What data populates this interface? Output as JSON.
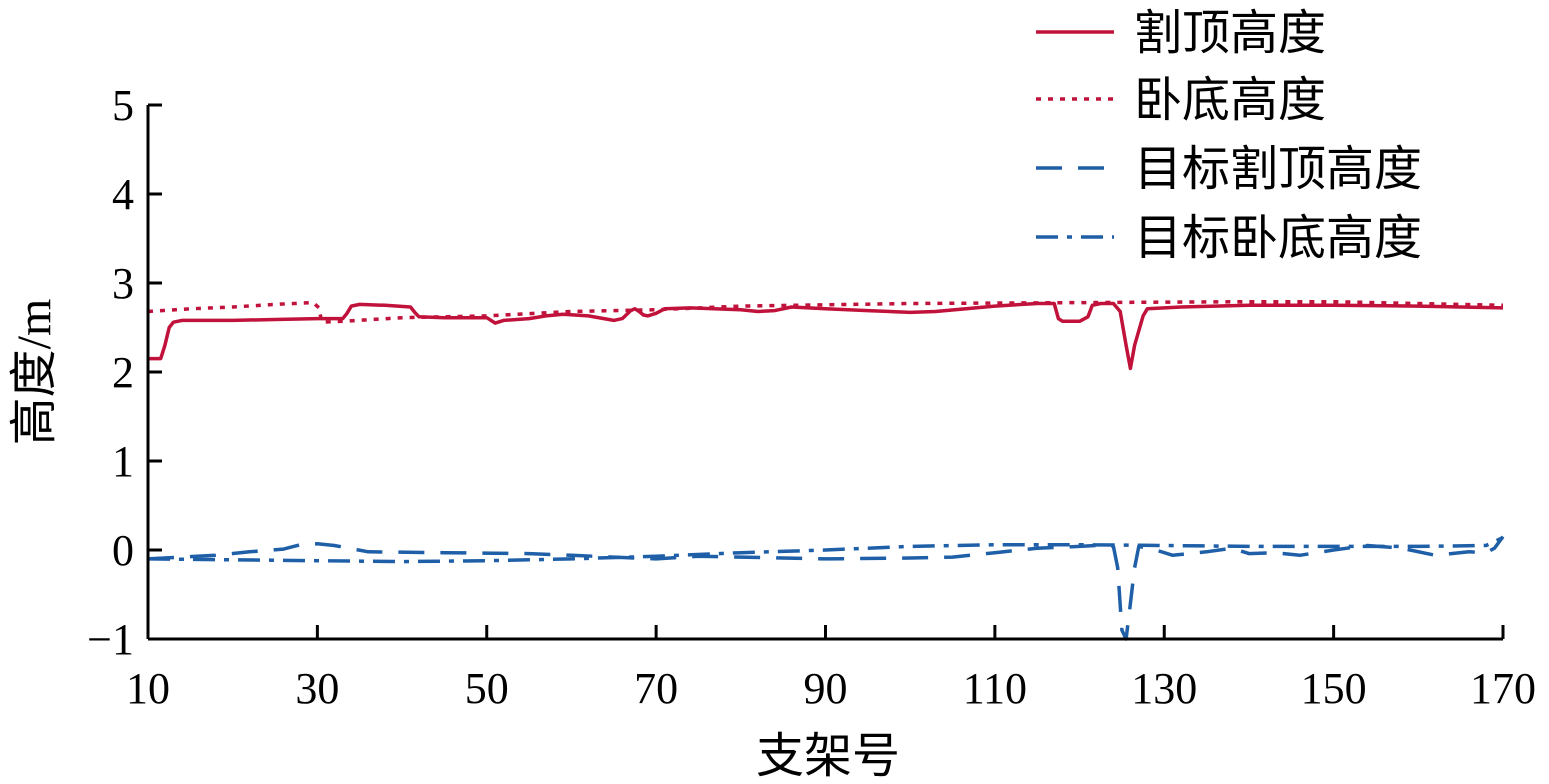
{
  "chart_data": {
    "type": "line",
    "xlabel": "支架号",
    "ylabel": "高度/m",
    "xlim": [
      10,
      170
    ],
    "ylim": [
      -1,
      5
    ],
    "xticks": [
      "10",
      "30",
      "50",
      "70",
      "90",
      "110",
      "130",
      "150",
      "170"
    ],
    "yticks": [
      "5",
      "4",
      "3",
      "2",
      "1",
      "0",
      "−1"
    ],
    "grid": false,
    "legend_position": "top-right",
    "series": [
      {
        "name": "割顶高度",
        "color": "#c0123a",
        "style": "solid",
        "points": [
          [
            10,
            2.15
          ],
          [
            11.5,
            2.15
          ],
          [
            12,
            2.3
          ],
          [
            12.5,
            2.5
          ],
          [
            13,
            2.56
          ],
          [
            14,
            2.58
          ],
          [
            20,
            2.58
          ],
          [
            25,
            2.59
          ],
          [
            30,
            2.6
          ],
          [
            33,
            2.6
          ],
          [
            33.5,
            2.66
          ],
          [
            34,
            2.74
          ],
          [
            35,
            2.76
          ],
          [
            38,
            2.75
          ],
          [
            41,
            2.73
          ],
          [
            41.5,
            2.67
          ],
          [
            42,
            2.62
          ],
          [
            45,
            2.61
          ],
          [
            50,
            2.61
          ],
          [
            51,
            2.55
          ],
          [
            52,
            2.58
          ],
          [
            55,
            2.6
          ],
          [
            57,
            2.63
          ],
          [
            59,
            2.65
          ],
          [
            62,
            2.63
          ],
          [
            65,
            2.58
          ],
          [
            66,
            2.6
          ],
          [
            67,
            2.69
          ],
          [
            67.5,
            2.71
          ],
          [
            68,
            2.68
          ],
          [
            68.5,
            2.64
          ],
          [
            69,
            2.63
          ],
          [
            70,
            2.66
          ],
          [
            71,
            2.71
          ],
          [
            74,
            2.72
          ],
          [
            80,
            2.7
          ],
          [
            82,
            2.68
          ],
          [
            84,
            2.69
          ],
          [
            86,
            2.73
          ],
          [
            90,
            2.71
          ],
          [
            95,
            2.69
          ],
          [
            100,
            2.67
          ],
          [
            103,
            2.68
          ],
          [
            110,
            2.74
          ],
          [
            115,
            2.77
          ],
          [
            117,
            2.77
          ],
          [
            117.5,
            2.6
          ],
          [
            118,
            2.57
          ],
          [
            120,
            2.57
          ],
          [
            121,
            2.62
          ],
          [
            121.5,
            2.75
          ],
          [
            122.5,
            2.77
          ],
          [
            124,
            2.77
          ],
          [
            124.8,
            2.68
          ],
          [
            125.5,
            2.3
          ],
          [
            126,
            2.04
          ],
          [
            126.5,
            2.3
          ],
          [
            127.5,
            2.63
          ],
          [
            128,
            2.71
          ],
          [
            132,
            2.73
          ],
          [
            140,
            2.75
          ],
          [
            150,
            2.75
          ],
          [
            160,
            2.74
          ],
          [
            170,
            2.72
          ]
        ]
      },
      {
        "name": "卧底高度",
        "color": "#c0123a",
        "style": "dotted",
        "points": [
          [
            10,
            2.68
          ],
          [
            15,
            2.71
          ],
          [
            20,
            2.73
          ],
          [
            25,
            2.76
          ],
          [
            29.5,
            2.78
          ],
          [
            30.2,
            2.72
          ],
          [
            30.5,
            2.56
          ],
          [
            33,
            2.57
          ],
          [
            40,
            2.61
          ],
          [
            50,
            2.63
          ],
          [
            60,
            2.68
          ],
          [
            70,
            2.7
          ],
          [
            80,
            2.74
          ],
          [
            100,
            2.77
          ],
          [
            120,
            2.78
          ],
          [
            140,
            2.79
          ],
          [
            150,
            2.79
          ],
          [
            160,
            2.77
          ],
          [
            170,
            2.75
          ]
        ]
      },
      {
        "name": "目标割顶高度",
        "color": "#1f5fa8",
        "style": "dashed",
        "points": [
          [
            10,
            -0.1
          ],
          [
            18,
            -0.06
          ],
          [
            22,
            -0.02
          ],
          [
            26,
            0.01
          ],
          [
            28,
            0.06
          ],
          [
            30,
            0.07
          ],
          [
            32,
            0.05
          ],
          [
            36,
            -0.02
          ],
          [
            45,
            -0.03
          ],
          [
            55,
            -0.04
          ],
          [
            60,
            -0.06
          ],
          [
            65,
            -0.08
          ],
          [
            70,
            -0.1
          ],
          [
            75,
            -0.07
          ],
          [
            80,
            -0.08
          ],
          [
            90,
            -0.1
          ],
          [
            100,
            -0.09
          ],
          [
            105,
            -0.08
          ],
          [
            110,
            -0.03
          ],
          [
            115,
            0.02
          ],
          [
            120,
            0.04
          ],
          [
            122,
            0.05
          ],
          [
            123,
            0.06
          ],
          [
            124,
            0.04
          ],
          [
            124.5,
            -0.2
          ],
          [
            125,
            -0.9
          ],
          [
            125.5,
            -1.0
          ],
          [
            126,
            -0.6
          ],
          [
            126.5,
            -0.2
          ],
          [
            127,
            0.04
          ],
          [
            129,
            0.0
          ],
          [
            131,
            -0.06
          ],
          [
            135,
            -0.02
          ],
          [
            138,
            0.02
          ],
          [
            140,
            -0.04
          ],
          [
            143,
            -0.03
          ],
          [
            146,
            -0.06
          ],
          [
            150,
            0.0
          ],
          [
            154,
            0.05
          ],
          [
            158,
            0.02
          ],
          [
            162,
            -0.06
          ],
          [
            166,
            -0.02
          ],
          [
            168,
            -0.03
          ],
          [
            169,
            0.02
          ],
          [
            170,
            0.15
          ]
        ]
      },
      {
        "name": "目标卧底高度",
        "color": "#1f5fa8",
        "style": "dashdot",
        "points": [
          [
            10,
            -0.1
          ],
          [
            20,
            -0.11
          ],
          [
            30,
            -0.12
          ],
          [
            40,
            -0.13
          ],
          [
            50,
            -0.12
          ],
          [
            60,
            -0.1
          ],
          [
            70,
            -0.07
          ],
          [
            80,
            -0.03
          ],
          [
            90,
            0.0
          ],
          [
            100,
            0.04
          ],
          [
            110,
            0.06
          ],
          [
            120,
            0.06
          ],
          [
            130,
            0.05
          ],
          [
            140,
            0.04
          ],
          [
            150,
            0.04
          ],
          [
            160,
            0.04
          ],
          [
            168,
            0.05
          ],
          [
            170,
            0.14
          ]
        ]
      }
    ]
  }
}
